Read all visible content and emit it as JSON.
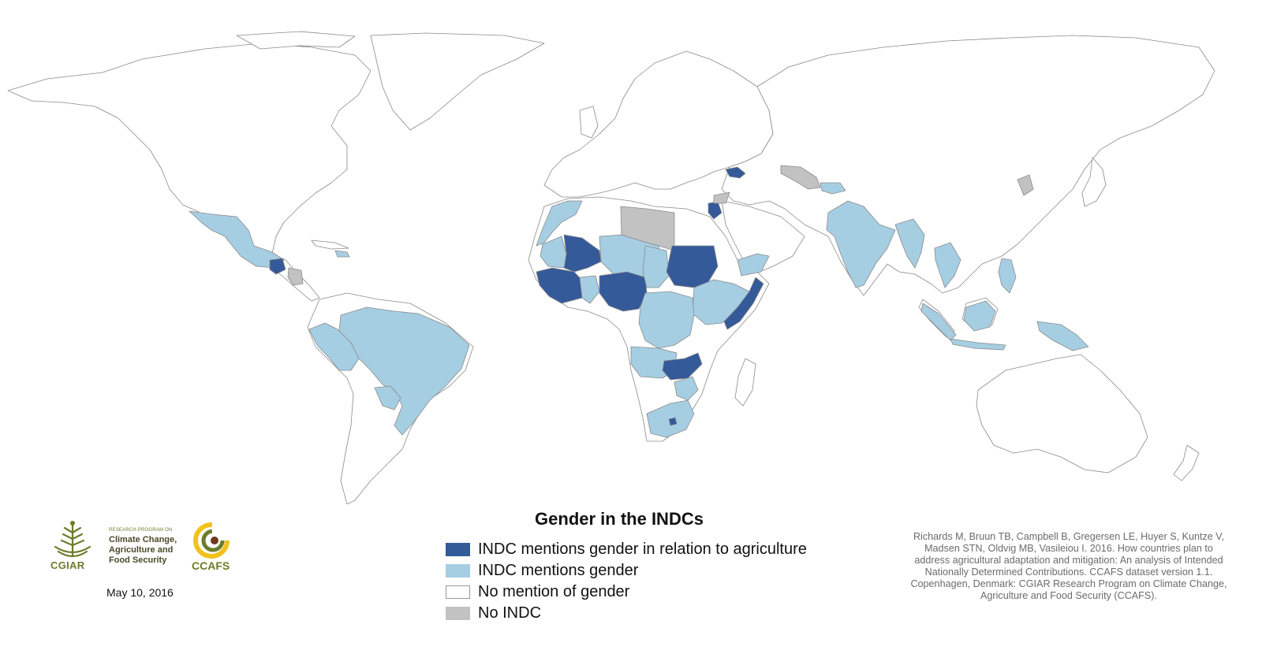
{
  "map": {
    "title": "Gender in the INDCs",
    "categories": {
      "agri": {
        "label": "INDC mentions gender in relation to agriculture",
        "color": "#355a9a"
      },
      "gender": {
        "label": "INDC mentions gender",
        "color": "#a6cee3"
      },
      "none": {
        "label": "No mention of gender",
        "color": "#ffffff"
      },
      "noindc": {
        "label": "No INDC",
        "color": "#c2c2c2"
      }
    },
    "regions": [
      {
        "name": "Mexico",
        "category": "gender"
      },
      {
        "name": "Guatemala",
        "category": "agri"
      },
      {
        "name": "Nicaragua",
        "category": "noindc"
      },
      {
        "name": "Brazil",
        "category": "gender"
      },
      {
        "name": "Peru",
        "category": "gender"
      },
      {
        "name": "Paraguay",
        "category": "gender"
      },
      {
        "name": "Morocco",
        "category": "gender"
      },
      {
        "name": "Libya",
        "category": "noindc"
      },
      {
        "name": "Mali",
        "category": "agri"
      },
      {
        "name": "Sudan",
        "category": "agri"
      },
      {
        "name": "Nigeria",
        "category": "agri"
      },
      {
        "name": "Somalia",
        "category": "agri"
      },
      {
        "name": "Zambia",
        "category": "agri"
      },
      {
        "name": "South Africa",
        "category": "gender"
      },
      {
        "name": "Georgia",
        "category": "agri"
      },
      {
        "name": "Jordan",
        "category": "agri"
      },
      {
        "name": "Uzbekistan",
        "category": "noindc"
      },
      {
        "name": "North Korea",
        "category": "noindc"
      },
      {
        "name": "India",
        "category": "gender"
      },
      {
        "name": "Indonesia",
        "category": "gender"
      },
      {
        "name": "Papua New Guinea",
        "category": "gender"
      },
      {
        "name": "Philippines",
        "category": "gender"
      }
    ]
  },
  "citation": "Richards M, Bruun TB, Campbell B, Gregersen LE, Huyer S, Kuntze V, Madsen STN, Oldvig MB, Vasileiou I. 2016. How countries plan to address agricultural adaptation and mitigation: An analysis of Intended Nationally Determined Contributions. CCAFS dataset version 1.1. Copenhagen, Denmark: CGIAR Research Program on Climate Change, Agriculture and Food Security (CCAFS).",
  "logos": {
    "cgiar": "CGIAR",
    "crp_small": "RESEARCH PROGRAM ON",
    "crp_line1": "Climate Change,",
    "crp_line2": "Agriculture and",
    "crp_line3": "Food Security",
    "ccafs": "CCAFS"
  },
  "date": "May 10, 2016"
}
